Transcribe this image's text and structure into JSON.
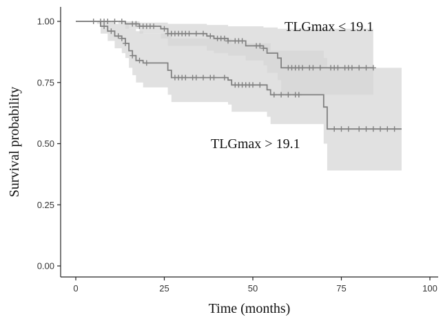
{
  "chart_data": {
    "type": "line",
    "title": "",
    "xlabel": "Time (months)",
    "ylabel": "Survival  probability",
    "xlim": [
      0,
      100
    ],
    "ylim": [
      0,
      1
    ],
    "x_ticks": [
      0,
      25,
      50,
      75,
      100
    ],
    "y_ticks": [
      0.0,
      0.25,
      0.5,
      0.75,
      1.0
    ],
    "y_tick_labels": [
      "0.00",
      "0.25",
      "0.50",
      "0.75",
      "1.00"
    ],
    "grid": false,
    "colors": {
      "line": "#808080",
      "band": "#d6d6d6",
      "axis": "#222222"
    },
    "series": [
      {
        "annotation": "TLGmax  ≤ 19.1",
        "steps": [
          [
            0,
            1.0
          ],
          [
            12,
            1.0
          ],
          [
            14,
            0.99
          ],
          [
            18,
            0.98
          ],
          [
            24,
            0.97
          ],
          [
            26,
            0.95
          ],
          [
            37,
            0.94
          ],
          [
            39,
            0.93
          ],
          [
            43,
            0.92
          ],
          [
            48,
            0.9
          ],
          [
            53,
            0.89
          ],
          [
            54,
            0.87
          ],
          [
            57,
            0.85
          ],
          [
            58,
            0.81
          ],
          [
            84,
            0.81
          ]
        ],
        "band_upper": [
          [
            0,
            1.0
          ],
          [
            13,
            1.0
          ],
          [
            18,
            0.995
          ],
          [
            26,
            0.99
          ],
          [
            37,
            0.985
          ],
          [
            43,
            0.98
          ],
          [
            53,
            0.975
          ],
          [
            57,
            0.97
          ],
          [
            84,
            0.96
          ]
        ],
        "band_lower": [
          [
            0,
            1.0
          ],
          [
            12,
            0.99
          ],
          [
            14,
            0.97
          ],
          [
            18,
            0.95
          ],
          [
            24,
            0.93
          ],
          [
            26,
            0.9
          ],
          [
            37,
            0.88
          ],
          [
            39,
            0.87
          ],
          [
            43,
            0.86
          ],
          [
            48,
            0.84
          ],
          [
            53,
            0.82
          ],
          [
            54,
            0.79
          ],
          [
            57,
            0.76
          ],
          [
            58,
            0.7
          ],
          [
            84,
            0.69
          ]
        ],
        "censors": [
          5,
          7,
          8,
          9,
          11,
          13,
          16,
          17,
          18,
          19,
          20,
          21,
          22,
          25,
          26,
          27,
          28,
          29,
          30,
          31,
          32,
          34,
          36,
          38,
          40,
          41,
          42,
          43,
          45,
          46,
          47,
          51,
          52,
          53,
          60,
          61,
          62,
          63,
          64,
          66,
          67,
          69,
          72,
          73,
          74,
          76,
          77,
          78,
          80,
          82,
          84
        ]
      },
      {
        "annotation": "TLGmax  > 19.1",
        "steps": [
          [
            0,
            1.0
          ],
          [
            6,
            1.0
          ],
          [
            7,
            0.98
          ],
          [
            9,
            0.96
          ],
          [
            11,
            0.94
          ],
          [
            13,
            0.93
          ],
          [
            14,
            0.91
          ],
          [
            15,
            0.88
          ],
          [
            16,
            0.86
          ],
          [
            17,
            0.84
          ],
          [
            19,
            0.83
          ],
          [
            26,
            0.8
          ],
          [
            27,
            0.77
          ],
          [
            43,
            0.76
          ],
          [
            44,
            0.74
          ],
          [
            54,
            0.72
          ],
          [
            55,
            0.7
          ],
          [
            70,
            0.65
          ],
          [
            71,
            0.56
          ],
          [
            92,
            0.56
          ]
        ],
        "band_upper": [
          [
            0,
            1.0
          ],
          [
            7,
            1.0
          ],
          [
            11,
            0.99
          ],
          [
            15,
            0.97
          ],
          [
            17,
            0.96
          ],
          [
            19,
            0.95
          ],
          [
            27,
            0.93
          ],
          [
            44,
            0.91
          ],
          [
            55,
            0.88
          ],
          [
            70,
            0.85
          ],
          [
            71,
            0.81
          ],
          [
            92,
            0.81
          ]
        ],
        "band_lower": [
          [
            0,
            1.0
          ],
          [
            6,
            0.99
          ],
          [
            7,
            0.95
          ],
          [
            9,
            0.92
          ],
          [
            11,
            0.89
          ],
          [
            13,
            0.87
          ],
          [
            14,
            0.85
          ],
          [
            15,
            0.81
          ],
          [
            16,
            0.78
          ],
          [
            17,
            0.75
          ],
          [
            19,
            0.73
          ],
          [
            26,
            0.7
          ],
          [
            27,
            0.67
          ],
          [
            43,
            0.66
          ],
          [
            44,
            0.63
          ],
          [
            54,
            0.61
          ],
          [
            55,
            0.58
          ],
          [
            70,
            0.5
          ],
          [
            71,
            0.39
          ],
          [
            92,
            0.39
          ]
        ],
        "censors": [
          8,
          10,
          12,
          13,
          14,
          16,
          18,
          20,
          28,
          29,
          30,
          31,
          33,
          34,
          36,
          38,
          39,
          42,
          45,
          46,
          47,
          48,
          49,
          50,
          52,
          56,
          58,
          60,
          62,
          63,
          73,
          75,
          77,
          80,
          82,
          84,
          86,
          88,
          90
        ]
      }
    ]
  }
}
